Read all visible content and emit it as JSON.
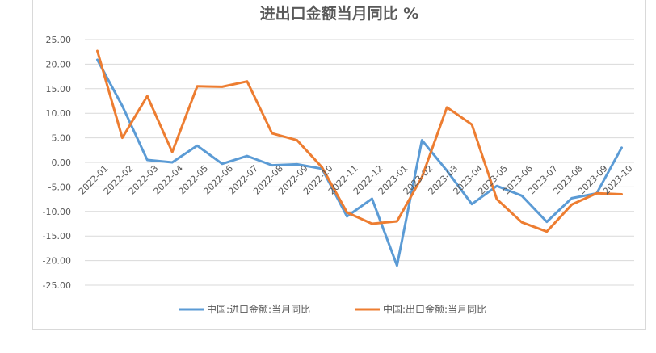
{
  "chart_data": {
    "type": "line",
    "title": "进出口金额当月同比  %",
    "xlabel": "",
    "ylabel": "",
    "ylim": [
      -25,
      25
    ],
    "yticks": [
      "25.00",
      "20.00",
      "15.00",
      "10.00",
      "5.00",
      "0.00",
      "-5.00",
      "-10.00",
      "-15.00",
      "-20.00",
      "-25.00"
    ],
    "grid": true,
    "legend_position": "bottom",
    "categories": [
      "2022-01",
      "2022-02",
      "2022-03",
      "2022-04",
      "2022-05",
      "2022-06",
      "2022-07",
      "2022-08",
      "2022-09",
      "2022-10",
      "2022-11",
      "2022-12",
      "2023-01",
      "2023-02",
      "2023-03",
      "2023-04",
      "2023-05",
      "2023-06",
      "2023-07",
      "2023-08",
      "2023-09",
      "2023-10"
    ],
    "series": [
      {
        "name": "中国:进口金额:当月同比",
        "color": "#5b9bd5",
        "values": [
          20.9,
          11.5,
          0.5,
          0.0,
          3.4,
          -0.3,
          1.3,
          -0.6,
          -0.4,
          -1.3,
          -11.0,
          -7.4,
          -21.0,
          4.5,
          -1.7,
          -8.5,
          -4.8,
          -6.8,
          -12.1,
          -7.3,
          -6.3,
          3.0
        ]
      },
      {
        "name": "中国:出口金额:当月同比",
        "color": "#ed7d31",
        "values": [
          22.7,
          5.0,
          13.5,
          2.1,
          15.5,
          15.4,
          16.5,
          5.9,
          4.5,
          -1.0,
          -10.2,
          -12.5,
          -12.0,
          -3.0,
          11.2,
          7.7,
          -7.5,
          -12.2,
          -14.1,
          -8.6,
          -6.3,
          -6.5
        ]
      }
    ]
  }
}
